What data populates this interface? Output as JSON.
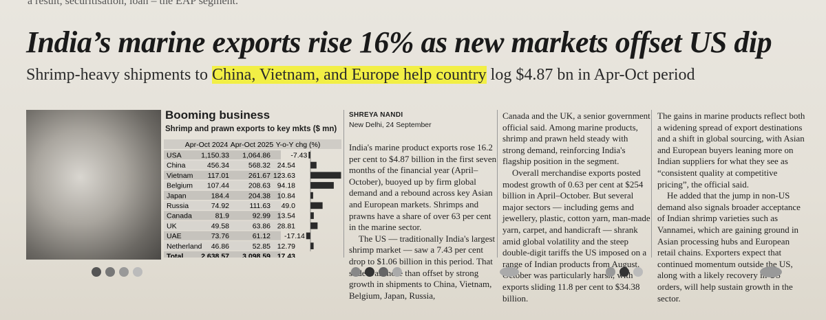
{
  "top_fragment": "a result, securitisation, loan – the EAP segment.",
  "headline": "India’s marine exports rise 16% as new markets offset US dip",
  "subheadline": {
    "before": "Shrimp-heavy shipments to ",
    "highlight": "China, Vietnam, and Europe help country",
    "after": " log $4.87 bn in Apr-Oct period"
  },
  "table": {
    "title": "Booming business",
    "subtitle": "Shrimp and prawn exports to key mkts ($ mn)",
    "columns": [
      "Apr-Oct 2024",
      "Apr-Oct 2025",
      "Y-o-Y chg (%)"
    ],
    "rows": [
      [
        "USA",
        "1,150.33",
        "1,064.86",
        "-7.43"
      ],
      [
        "China",
        "456.34",
        "568.32",
        "24.54"
      ],
      [
        "Vietnam",
        "117.01",
        "261.67",
        "123.63"
      ],
      [
        "Belgium",
        "107.44",
        "208.63",
        "94.18"
      ],
      [
        "Japan",
        "184.4",
        "204.38",
        "10.84"
      ],
      [
        "Russia",
        "74.92",
        "111.63",
        "49.0"
      ],
      [
        "Canada",
        "81.9",
        "92.99",
        "13.54"
      ],
      [
        "UK",
        "49.58",
        "63.86",
        "28.81"
      ],
      [
        "UAE",
        "73.76",
        "61.12",
        "-17.14"
      ],
      [
        "Netherland",
        "46.86",
        "52.85",
        "12.79"
      ],
      [
        "Total",
        "2,638.57",
        "3,098.59",
        "17.43"
      ]
    ]
  },
  "byline": {
    "author": "SHREYA NANDI",
    "dateline": "New Delhi, 24 September"
  },
  "columns": [
    [
      "India's marine product exports rose 16.2 per cent to $4.87 billion in the first seven months of the financial year (April–October), buoyed up by firm global demand and a rebound across key Asian and European markets. Shrimps and prawns have a share of over 63 per cent in the marine sector.",
      "The US — traditionally India's largest shrimp market — saw a 7.43 per cent drop to $1.06 billion in this period. That slide was more than offset by strong growth in shipments to China, Vietnam, Belgium, Japan, Russia,"
    ],
    [
      "Canada and the UK, a senior government official said. Among marine products, shrimp and prawn held steady with strong demand, reinforcing India's flagship position in the segment.",
      "Overall merchandise exports posted modest growth of 0.63 per cent at $254 billion in April–October. But several major sectors — including gems and jewellery, plastic, cotton yarn, man-made yarn, carpet, and handicraft — shrank amid global volatility and the steep double-digit tariffs the US imposed on a range of Indian products from August. October was particularly harsh, with exports sliding 11.8 per cent to $34.38 billion."
    ],
    [
      "The gains in marine products reflect both a widening spread of export destinations and a shift in global sourcing, with Asian and European buyers leaning more on Indian suppliers for what they see as “consistent quality at competitive pricing”, the official said.",
      "He added that the jump in non-US demand also signals broader acceptance of Indian shrimp varieties such as Vannamei, which are gaining ground in Asian processing hubs and European retail chains. Exporters expect that continued momentum outside the US, along with a likely recovery in US orders, will help sustain growth in the sector."
    ]
  ]
}
